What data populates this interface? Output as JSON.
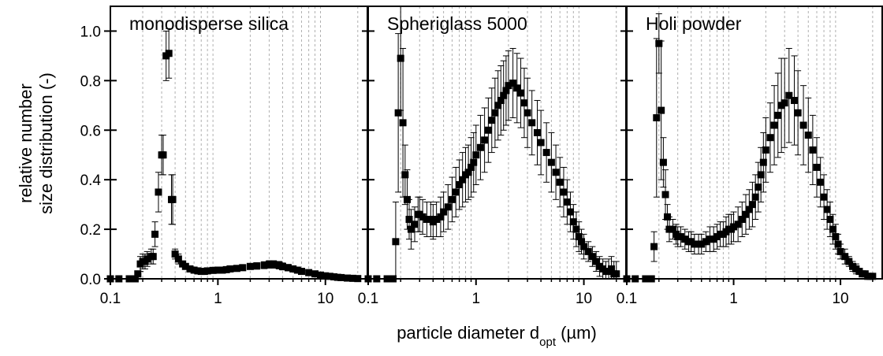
{
  "chart_data": {
    "type": "scatter",
    "layout": "three side-by-side panels sharing y axis",
    "ylabel_line1": "relative number",
    "ylabel_line2": "size distribution (-)",
    "xlabel_main": "particle diameter d",
    "xlabel_sub": "opt",
    "xlabel_unit": " (µm)",
    "x_scale": "log",
    "xlim": [
      0.1,
      25
    ],
    "ylim": [
      0.0,
      1.1
    ],
    "x_ticks": [
      0.1,
      1,
      10
    ],
    "x_tick_labels": [
      "0.1",
      "1",
      "10"
    ],
    "y_ticks": [
      0.0,
      0.2,
      0.4,
      0.6,
      0.8,
      1.0
    ],
    "y_tick_labels": [
      "0.0",
      "0.2",
      "0.4",
      "0.6",
      "0.8",
      "1.0"
    ],
    "grid": "vertical dashed lines at decade sub-ticks",
    "marker": "filled square with error bars",
    "colors": {
      "marker": "#000000",
      "grid": "#b0b0b0",
      "axis": "#000000"
    },
    "panels": [
      {
        "title": "monodisperse silica",
        "x": [
          0.1,
          0.12,
          0.15,
          0.17,
          0.18,
          0.19,
          0.2,
          0.21,
          0.22,
          0.24,
          0.25,
          0.26,
          0.28,
          0.3,
          0.31,
          0.33,
          0.35,
          0.37,
          0.38,
          0.4,
          0.43,
          0.47,
          0.5,
          0.55,
          0.6,
          0.65,
          0.7,
          0.75,
          0.8,
          0.9,
          1.0,
          1.1,
          1.2,
          1.3,
          1.5,
          1.7,
          2.0,
          2.3,
          2.7,
          3.0,
          3.3,
          3.7,
          4.0,
          4.5,
          5.0,
          5.5,
          6.0,
          7.0,
          8.0,
          9.0,
          10.0,
          11.0,
          12.0,
          13.0,
          14.0,
          16.0,
          18.0,
          20.0
        ],
        "y": [
          0.0,
          0.0,
          0.0,
          0.0,
          0.02,
          0.06,
          0.07,
          0.07,
          0.08,
          0.09,
          0.09,
          0.18,
          0.35,
          0.5,
          0.5,
          0.9,
          0.91,
          0.32,
          0.32,
          0.1,
          0.08,
          0.06,
          0.05,
          0.04,
          0.035,
          0.032,
          0.03,
          0.03,
          0.032,
          0.034,
          0.035,
          0.035,
          0.037,
          0.04,
          0.042,
          0.045,
          0.05,
          0.052,
          0.055,
          0.058,
          0.058,
          0.055,
          0.05,
          0.045,
          0.04,
          0.035,
          0.03,
          0.025,
          0.02,
          0.015,
          0.012,
          0.01,
          0.008,
          0.006,
          0.005,
          0.003,
          0.002,
          0.001
        ],
        "err": [
          0.0,
          0.0,
          0.0,
          0.0,
          0.01,
          0.03,
          0.03,
          0.03,
          0.03,
          0.03,
          0.03,
          0.05,
          0.08,
          0.08,
          0.08,
          0.1,
          0.1,
          0.1,
          0.1,
          0.02,
          0.02,
          0.01,
          0.01,
          0.01,
          0.008,
          0.007,
          0.006,
          0.006,
          0.006,
          0.006,
          0.007,
          0.007,
          0.008,
          0.008,
          0.009,
          0.01,
          0.012,
          0.013,
          0.014,
          0.015,
          0.015,
          0.015,
          0.014,
          0.013,
          0.012,
          0.011,
          0.01,
          0.008,
          0.006,
          0.005,
          0.004,
          0.003,
          0.003,
          0.002,
          0.002,
          0.001,
          0.001,
          0.001
        ]
      },
      {
        "title": "Spheriglass 5000",
        "x": [
          0.1,
          0.12,
          0.15,
          0.17,
          0.18,
          0.19,
          0.2,
          0.21,
          0.22,
          0.23,
          0.24,
          0.25,
          0.27,
          0.29,
          0.3,
          0.32,
          0.35,
          0.38,
          0.4,
          0.43,
          0.47,
          0.5,
          0.55,
          0.6,
          0.65,
          0.7,
          0.75,
          0.8,
          0.85,
          0.9,
          0.95,
          1.0,
          1.1,
          1.2,
          1.3,
          1.4,
          1.5,
          1.6,
          1.7,
          1.8,
          1.9,
          2.0,
          2.2,
          2.4,
          2.6,
          2.8,
          3.0,
          3.3,
          3.7,
          4.0,
          4.5,
          5.0,
          5.5,
          6.0,
          6.5,
          7.0,
          7.5,
          8.0,
          8.5,
          9.0,
          9.5,
          10.0,
          11.0,
          12.0,
          13.0,
          14.0,
          15.0,
          16.0,
          17.0,
          18.0,
          19.0,
          20.0
        ],
        "y": [
          0.0,
          0.0,
          0.0,
          0.0,
          0.15,
          0.67,
          0.89,
          0.63,
          0.42,
          0.32,
          0.24,
          0.2,
          0.22,
          0.26,
          0.26,
          0.25,
          0.24,
          0.24,
          0.23,
          0.24,
          0.25,
          0.27,
          0.29,
          0.32,
          0.35,
          0.38,
          0.4,
          0.42,
          0.43,
          0.45,
          0.47,
          0.5,
          0.53,
          0.56,
          0.6,
          0.64,
          0.67,
          0.7,
          0.72,
          0.74,
          0.76,
          0.78,
          0.79,
          0.77,
          0.75,
          0.71,
          0.67,
          0.63,
          0.59,
          0.55,
          0.51,
          0.47,
          0.43,
          0.39,
          0.35,
          0.31,
          0.27,
          0.23,
          0.2,
          0.17,
          0.15,
          0.13,
          0.11,
          0.09,
          0.07,
          0.05,
          0.04,
          0.03,
          0.03,
          0.04,
          0.02,
          0.02
        ],
        "err": [
          0.0,
          0.0,
          0.0,
          0.0,
          0.16,
          0.32,
          0.21,
          0.3,
          0.12,
          0.12,
          0.08,
          0.08,
          0.07,
          0.07,
          0.07,
          0.07,
          0.07,
          0.07,
          0.07,
          0.07,
          0.08,
          0.08,
          0.09,
          0.09,
          0.1,
          0.1,
          0.11,
          0.11,
          0.11,
          0.12,
          0.12,
          0.12,
          0.13,
          0.13,
          0.13,
          0.13,
          0.14,
          0.14,
          0.14,
          0.14,
          0.14,
          0.14,
          0.14,
          0.14,
          0.14,
          0.14,
          0.14,
          0.13,
          0.13,
          0.13,
          0.12,
          0.12,
          0.11,
          0.1,
          0.1,
          0.09,
          0.08,
          0.07,
          0.07,
          0.06,
          0.05,
          0.05,
          0.04,
          0.04,
          0.04,
          0.04,
          0.04,
          0.04,
          0.05,
          0.05,
          0.05,
          0.05
        ]
      },
      {
        "title": "Holi powder",
        "x": [
          0.1,
          0.12,
          0.15,
          0.17,
          0.18,
          0.19,
          0.2,
          0.21,
          0.22,
          0.23,
          0.24,
          0.25,
          0.27,
          0.29,
          0.3,
          0.32,
          0.35,
          0.38,
          0.4,
          0.43,
          0.47,
          0.5,
          0.55,
          0.6,
          0.65,
          0.7,
          0.75,
          0.8,
          0.85,
          0.9,
          0.95,
          1.0,
          1.1,
          1.2,
          1.3,
          1.4,
          1.5,
          1.6,
          1.7,
          1.8,
          1.9,
          2.0,
          2.2,
          2.4,
          2.6,
          2.8,
          3.0,
          3.3,
          3.7,
          4.0,
          4.5,
          5.0,
          5.5,
          6.0,
          6.5,
          7.0,
          7.5,
          8.0,
          8.5,
          9.0,
          9.5,
          10.0,
          11.0,
          12.0,
          13.0,
          14.0,
          15.0,
          16.0,
          17.0,
          18.0,
          19.0,
          20.0
        ],
        "y": [
          0.0,
          0.0,
          0.0,
          0.0,
          0.13,
          0.65,
          0.95,
          0.68,
          0.47,
          0.34,
          0.25,
          0.2,
          0.2,
          0.18,
          0.17,
          0.17,
          0.16,
          0.15,
          0.15,
          0.14,
          0.14,
          0.14,
          0.15,
          0.16,
          0.16,
          0.17,
          0.18,
          0.18,
          0.19,
          0.2,
          0.2,
          0.21,
          0.22,
          0.24,
          0.26,
          0.28,
          0.3,
          0.33,
          0.37,
          0.42,
          0.47,
          0.52,
          0.57,
          0.62,
          0.66,
          0.7,
          0.71,
          0.74,
          0.72,
          0.67,
          0.62,
          0.58,
          0.52,
          0.45,
          0.39,
          0.33,
          0.28,
          0.24,
          0.2,
          0.17,
          0.14,
          0.11,
          0.09,
          0.07,
          0.05,
          0.04,
          0.03,
          0.02,
          0.02,
          0.01,
          0.01,
          0.01
        ],
        "err": [
          0.0,
          0.0,
          0.0,
          0.0,
          0.06,
          0.32,
          0.12,
          0.28,
          0.1,
          0.1,
          0.05,
          0.05,
          0.04,
          0.04,
          0.04,
          0.04,
          0.04,
          0.04,
          0.04,
          0.04,
          0.04,
          0.04,
          0.04,
          0.05,
          0.05,
          0.05,
          0.05,
          0.05,
          0.06,
          0.06,
          0.06,
          0.06,
          0.07,
          0.07,
          0.08,
          0.08,
          0.09,
          0.09,
          0.1,
          0.11,
          0.12,
          0.13,
          0.14,
          0.16,
          0.17,
          0.19,
          0.18,
          0.19,
          0.18,
          0.17,
          0.16,
          0.15,
          0.14,
          0.12,
          0.1,
          0.09,
          0.08,
          0.07,
          0.06,
          0.05,
          0.04,
          0.03,
          0.03,
          0.02,
          0.02,
          0.02,
          0.01,
          0.01,
          0.01,
          0.01,
          0.01,
          0.01
        ]
      }
    ]
  }
}
